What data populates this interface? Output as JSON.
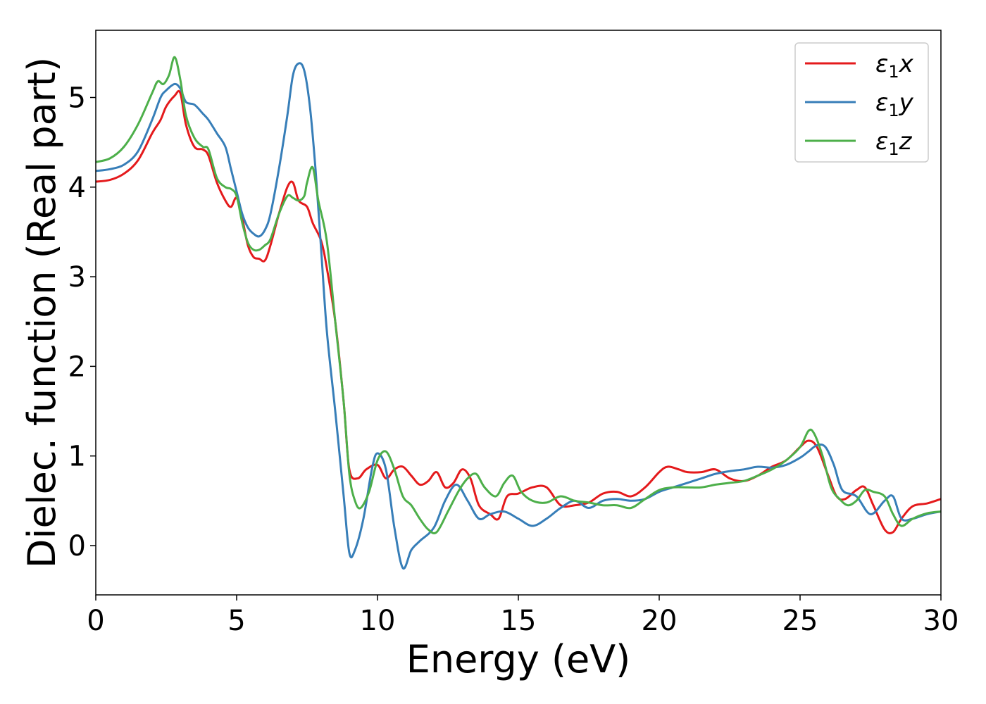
{
  "chart_data": {
    "type": "line",
    "xlabel": "Energy (eV)",
    "ylabel": "Dielec. function (Real part)",
    "xlim": [
      0,
      30
    ],
    "ylim": [
      -0.55,
      5.75
    ],
    "xticks": [
      0,
      5,
      10,
      15,
      20,
      25,
      30
    ],
    "yticks": [
      0,
      1,
      2,
      3,
      4,
      5
    ],
    "grid": false,
    "legend_position": "top-right",
    "series": [
      {
        "name": "ε₁x",
        "legend": {
          "base": "ε",
          "sub": "1",
          "var": "x"
        },
        "color": "#e41a1c",
        "x": [
          0,
          0.5,
          1,
          1.5,
          2,
          2.3,
          2.5,
          2.8,
          3,
          3.2,
          3.5,
          3.8,
          4,
          4.3,
          4.6,
          4.8,
          5,
          5.2,
          5.4,
          5.6,
          5.8,
          6,
          6.2,
          6.5,
          6.8,
          7,
          7.2,
          7.5,
          7.7,
          8,
          8.2,
          8.5,
          8.8,
          9,
          9.3,
          9.6,
          10,
          10.3,
          10.6,
          10.9,
          11.2,
          11.5,
          11.8,
          12.1,
          12.4,
          12.7,
          13,
          13.3,
          13.6,
          14,
          14.3,
          14.6,
          15,
          15.5,
          16,
          16.5,
          17,
          17.5,
          18,
          18.5,
          19,
          19.5,
          20,
          20.3,
          20.7,
          21,
          21.5,
          22,
          22.5,
          23,
          23.5,
          24,
          24.5,
          25,
          25.3,
          25.6,
          26,
          26.3,
          26.6,
          27,
          27.3,
          27.6,
          28,
          28.3,
          28.6,
          29,
          29.5,
          30
        ],
        "values": [
          4.06,
          4.08,
          4.15,
          4.3,
          4.6,
          4.75,
          4.9,
          5.02,
          5.05,
          4.7,
          4.45,
          4.42,
          4.35,
          4.05,
          3.85,
          3.78,
          3.88,
          3.65,
          3.35,
          3.22,
          3.2,
          3.18,
          3.35,
          3.7,
          4.0,
          4.05,
          3.85,
          3.78,
          3.6,
          3.4,
          3.1,
          2.5,
          1.6,
          0.85,
          0.75,
          0.85,
          0.9,
          0.75,
          0.85,
          0.88,
          0.78,
          0.68,
          0.72,
          0.82,
          0.65,
          0.7,
          0.85,
          0.75,
          0.45,
          0.35,
          0.3,
          0.55,
          0.58,
          0.65,
          0.65,
          0.45,
          0.45,
          0.48,
          0.58,
          0.6,
          0.55,
          0.65,
          0.82,
          0.88,
          0.85,
          0.82,
          0.82,
          0.85,
          0.75,
          0.72,
          0.78,
          0.88,
          0.95,
          1.1,
          1.17,
          1.1,
          0.78,
          0.55,
          0.52,
          0.62,
          0.65,
          0.45,
          0.18,
          0.15,
          0.3,
          0.44,
          0.47,
          0.52
        ]
      },
      {
        "name": "ε₁y",
        "legend": {
          "base": "ε",
          "sub": "1",
          "var": "y"
        },
        "color": "#377eb8",
        "x": [
          0,
          0.5,
          1,
          1.5,
          2,
          2.3,
          2.5,
          2.8,
          3,
          3.2,
          3.5,
          3.8,
          4,
          4.3,
          4.6,
          4.8,
          5,
          5.2,
          5.4,
          5.6,
          5.8,
          6,
          6.2,
          6.5,
          6.8,
          7,
          7.2,
          7.4,
          7.6,
          7.8,
          8,
          8.2,
          8.5,
          8.8,
          9,
          9.2,
          9.5,
          9.8,
          10,
          10.3,
          10.6,
          10.9,
          11.2,
          11.5,
          12,
          12.4,
          12.8,
          13.2,
          13.6,
          14,
          14.5,
          15,
          15.5,
          16,
          16.5,
          17,
          17.5,
          18,
          18.5,
          19,
          19.5,
          20,
          20.5,
          21,
          21.5,
          22,
          22.5,
          23,
          23.5,
          24,
          24.5,
          25,
          25.3,
          25.6,
          25.9,
          26.2,
          26.5,
          27,
          27.5,
          28,
          28.3,
          28.6,
          29,
          29.5,
          30
        ],
        "values": [
          4.18,
          4.2,
          4.25,
          4.4,
          4.75,
          5.0,
          5.08,
          5.15,
          5.1,
          4.95,
          4.92,
          4.82,
          4.75,
          4.6,
          4.45,
          4.2,
          3.95,
          3.7,
          3.55,
          3.48,
          3.45,
          3.52,
          3.7,
          4.2,
          4.8,
          5.25,
          5.38,
          5.3,
          4.9,
          4.2,
          3.3,
          2.4,
          1.5,
          0.55,
          -0.08,
          -0.05,
          0.3,
          0.85,
          1.03,
          0.85,
          0.2,
          -0.25,
          -0.05,
          0.05,
          0.2,
          0.5,
          0.68,
          0.5,
          0.3,
          0.35,
          0.38,
          0.3,
          0.22,
          0.3,
          0.42,
          0.5,
          0.42,
          0.5,
          0.52,
          0.5,
          0.52,
          0.6,
          0.65,
          0.7,
          0.75,
          0.8,
          0.83,
          0.85,
          0.88,
          0.87,
          0.9,
          0.98,
          1.05,
          1.12,
          1.1,
          0.9,
          0.62,
          0.55,
          0.35,
          0.5,
          0.55,
          0.3,
          0.3,
          0.35,
          0.38
        ]
      },
      {
        "name": "ε₁z",
        "legend": {
          "base": "ε",
          "sub": "1",
          "var": "z"
        },
        "color": "#4daf4a",
        "x": [
          0,
          0.5,
          1,
          1.5,
          2,
          2.2,
          2.4,
          2.6,
          2.8,
          3,
          3.2,
          3.5,
          3.8,
          4,
          4.3,
          4.6,
          4.8,
          5,
          5.2,
          5.4,
          5.6,
          5.8,
          6,
          6.2,
          6.5,
          6.8,
          7,
          7.2,
          7.4,
          7.5,
          7.7,
          7.9,
          8.2,
          8.5,
          8.8,
          9,
          9.2,
          9.4,
          9.7,
          10,
          10.3,
          10.6,
          10.9,
          11.2,
          11.5,
          11.8,
          12.1,
          12.5,
          12.9,
          13.2,
          13.5,
          13.8,
          14.2,
          14.5,
          14.8,
          15.1,
          15.5,
          16,
          16.5,
          17,
          17.5,
          18,
          18.5,
          19,
          19.5,
          20,
          20.5,
          21,
          21.5,
          22,
          22.5,
          23,
          23.5,
          24,
          24.5,
          25,
          25.3,
          25.5,
          25.8,
          26.1,
          26.4,
          26.7,
          27,
          27.3,
          27.6,
          28,
          28.3,
          28.6,
          29,
          29.5,
          30
        ],
        "values": [
          4.28,
          4.32,
          4.45,
          4.7,
          5.05,
          5.18,
          5.15,
          5.25,
          5.45,
          5.2,
          4.8,
          4.55,
          4.45,
          4.42,
          4.1,
          4.0,
          3.98,
          3.9,
          3.6,
          3.38,
          3.3,
          3.3,
          3.35,
          3.42,
          3.7,
          3.9,
          3.88,
          3.85,
          3.9,
          4.05,
          4.22,
          3.85,
          3.4,
          2.5,
          1.6,
          0.8,
          0.5,
          0.42,
          0.6,
          0.95,
          1.05,
          0.85,
          0.55,
          0.45,
          0.3,
          0.18,
          0.15,
          0.38,
          0.62,
          0.75,
          0.8,
          0.65,
          0.55,
          0.7,
          0.78,
          0.6,
          0.5,
          0.48,
          0.55,
          0.5,
          0.48,
          0.45,
          0.45,
          0.42,
          0.52,
          0.62,
          0.65,
          0.65,
          0.65,
          0.68,
          0.7,
          0.72,
          0.78,
          0.85,
          0.95,
          1.1,
          1.28,
          1.25,
          1.0,
          0.65,
          0.52,
          0.45,
          0.5,
          0.62,
          0.6,
          0.55,
          0.35,
          0.22,
          0.3,
          0.36,
          0.38
        ]
      }
    ]
  }
}
